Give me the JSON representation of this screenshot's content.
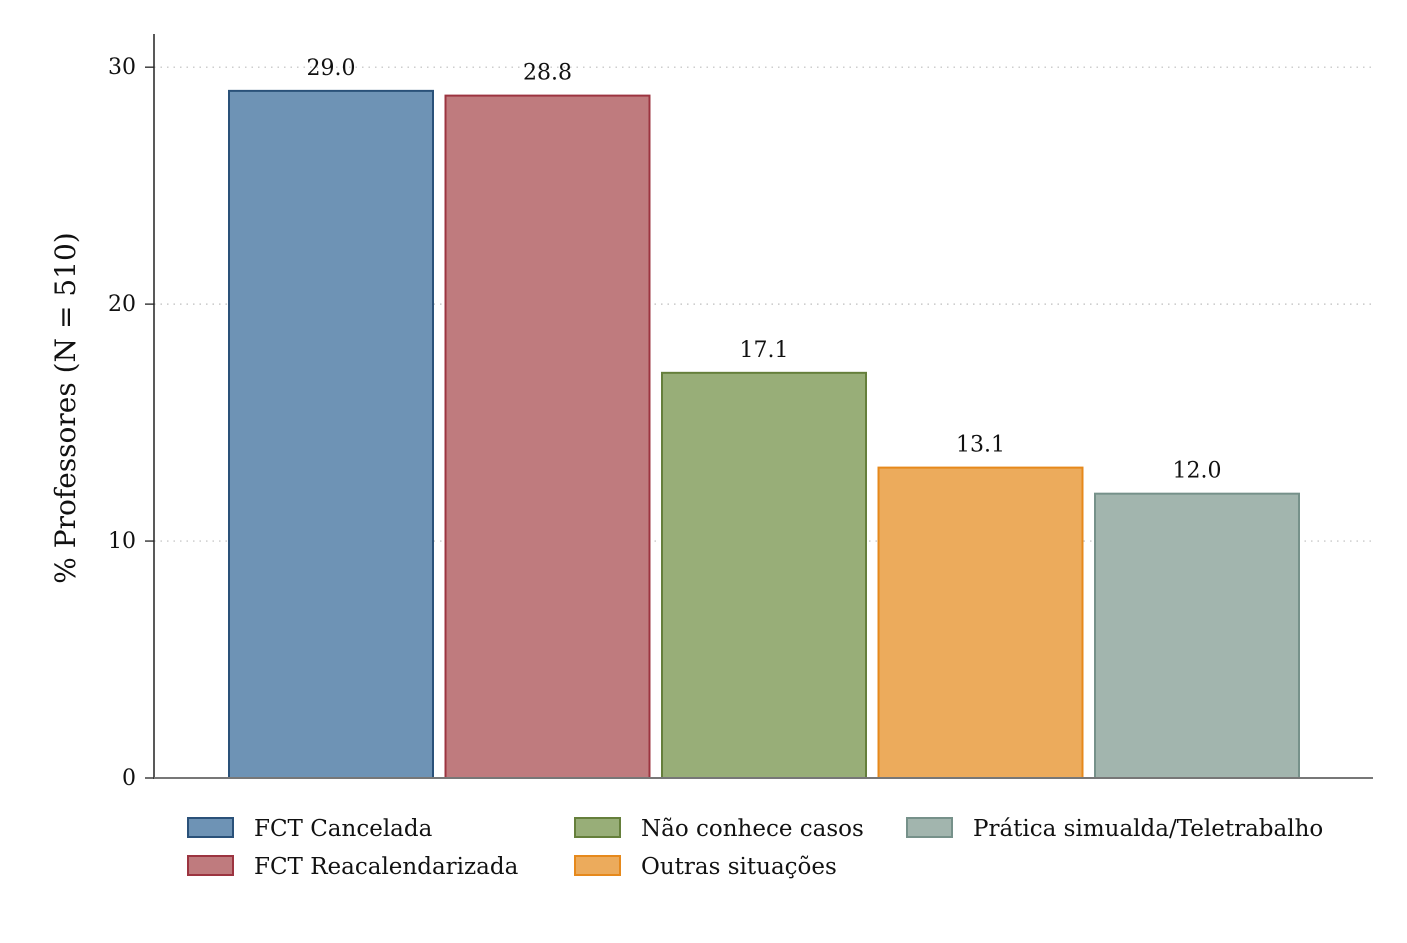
{
  "chart_data": {
    "type": "bar",
    "ylabel": "% Professores (N = 510)",
    "xlabel": "",
    "ylim": [
      0,
      31.4
    ],
    "yticks": [
      0,
      10,
      20,
      30
    ],
    "grid": "horizontal dotted",
    "legend_position": "bottom",
    "categories": [
      "FCT Cancelada",
      "FCT Reacalendarizada",
      "Não conhece casos",
      "Outras situações",
      "Prática simualda/Teletrabalho"
    ],
    "values": [
      29.0,
      28.8,
      17.1,
      13.1,
      12.0
    ],
    "value_labels": [
      "29.0",
      "28.8",
      "17.1",
      "13.1",
      "12.0"
    ],
    "colors": {
      "fills": [
        "#6e93b5",
        "#bf7b7e",
        "#98ae78",
        "#ecab5c",
        "#a2b5ae"
      ],
      "strokes": [
        "#2a5179",
        "#9c3440",
        "#657f3b",
        "#e6891c",
        "#76918a"
      ]
    }
  }
}
